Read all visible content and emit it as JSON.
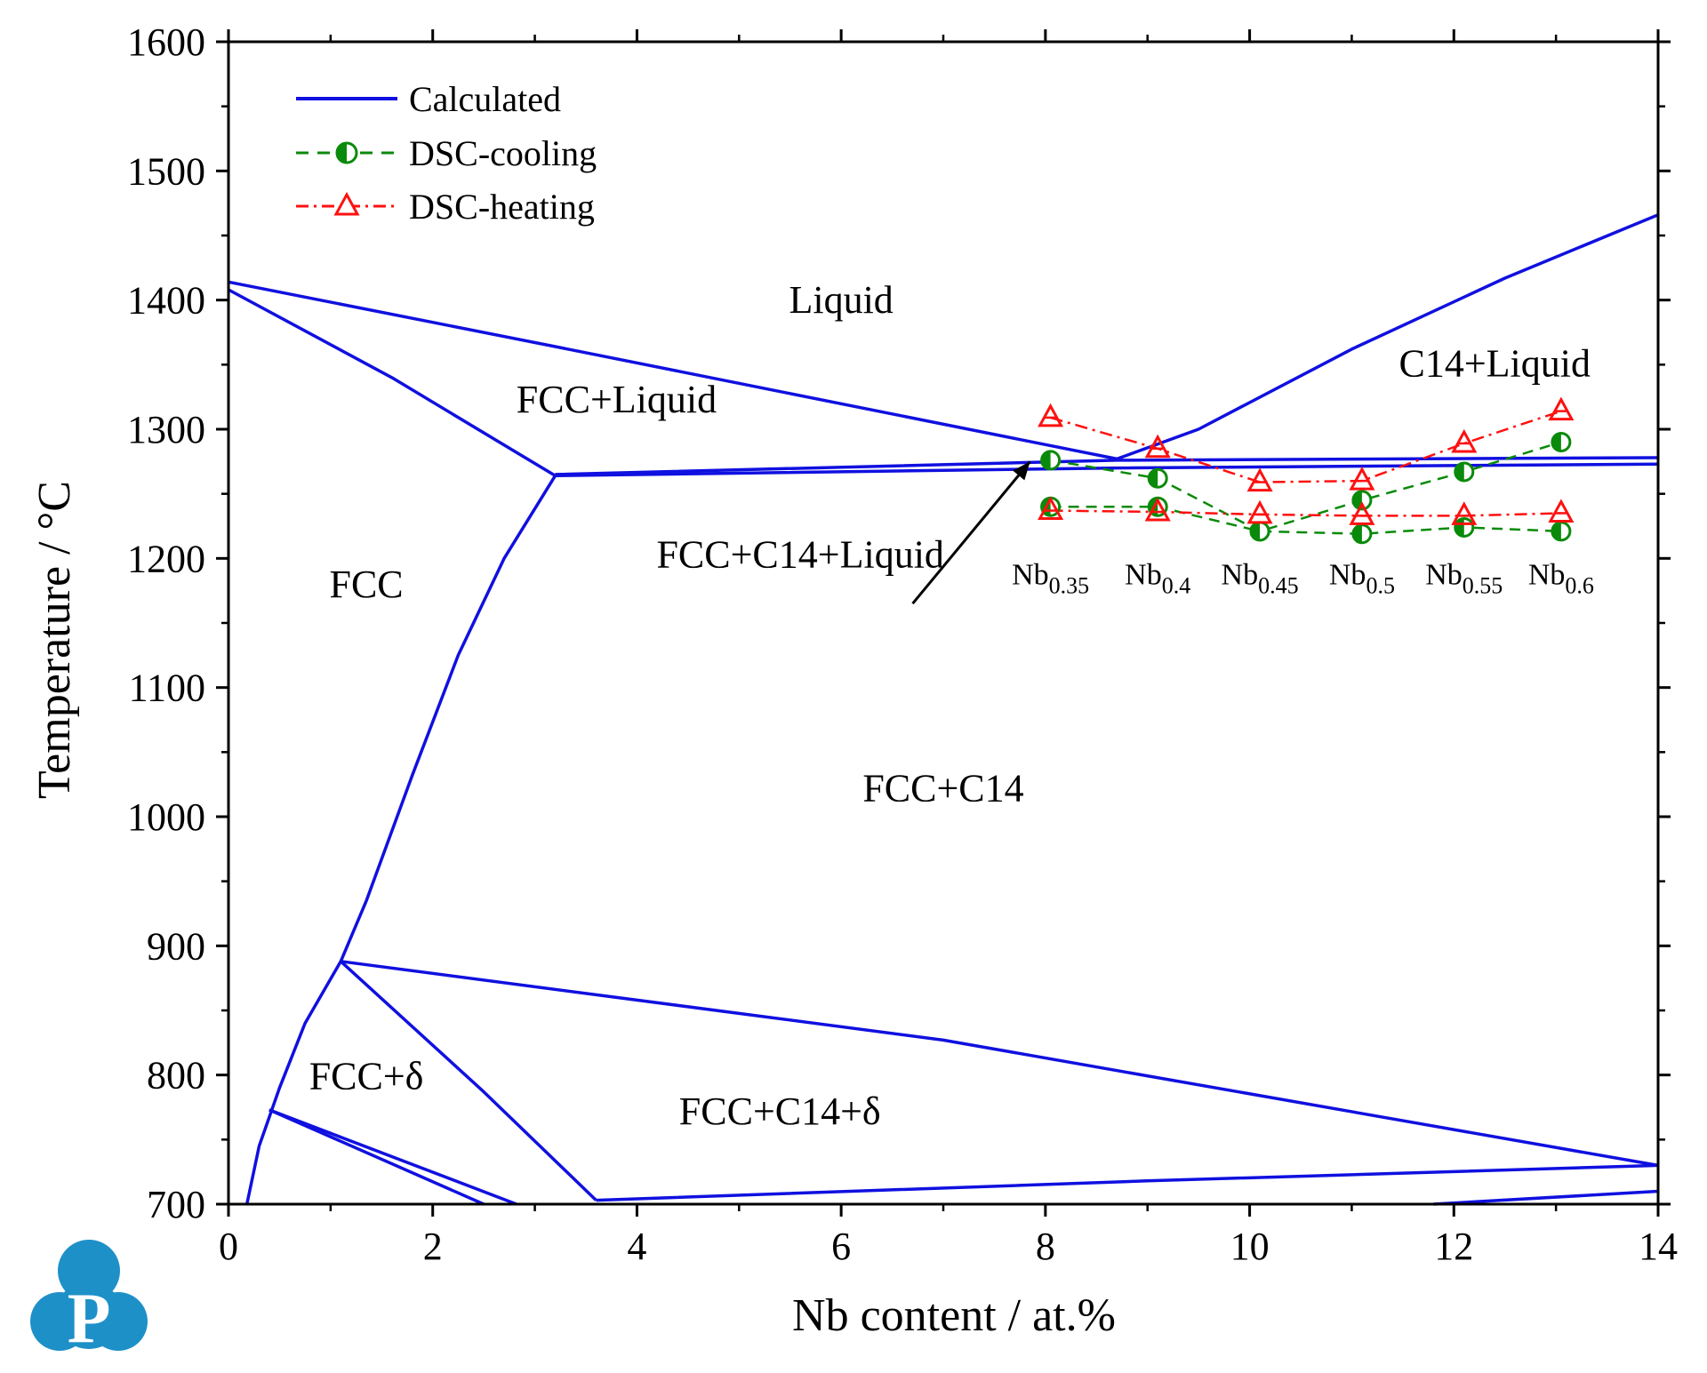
{
  "chart_data": {
    "type": "line",
    "xlabel": "Nb content / at.%",
    "ylabel": "Temperature / °C",
    "xlim": [
      0,
      14
    ],
    "ylim": [
      700,
      1600
    ],
    "x_ticks": [
      0,
      2,
      4,
      6,
      8,
      10,
      12,
      14
    ],
    "y_ticks": [
      700,
      800,
      900,
      1000,
      1100,
      1200,
      1300,
      1400,
      1500,
      1600
    ],
    "x_tick_labels": [
      "0",
      "2",
      "4",
      "6",
      "8",
      "10",
      "12",
      "14"
    ],
    "y_tick_labels": [
      "700",
      "800",
      "900",
      "1000",
      "1100",
      "1200",
      "1300",
      "1400",
      "1500",
      "1600"
    ],
    "legend_position": "top-left",
    "legend": [
      {
        "label": "Calculated",
        "color": "#0000e0",
        "style": "solid"
      },
      {
        "label": "DSC-cooling",
        "color": "#008000",
        "style": "dashed",
        "marker": "half-filled-circle"
      },
      {
        "label": "DSC-heating",
        "color": "#ff0000",
        "style": "dash-dot",
        "marker": "open-triangle"
      }
    ],
    "calculated_lines": [
      {
        "name": "liquidus-fcc",
        "points": [
          [
            0,
            1414
          ],
          [
            3.2,
            1364
          ],
          [
            8.7,
            1277
          ]
        ]
      },
      {
        "name": "solidus-fcc",
        "points": [
          [
            0,
            1408
          ],
          [
            1.6,
            1340
          ],
          [
            3.2,
            1264
          ]
        ]
      },
      {
        "name": "liquidus-c14",
        "points": [
          [
            8.7,
            1277
          ],
          [
            9.5,
            1300
          ],
          [
            11,
            1362
          ],
          [
            12.5,
            1417
          ],
          [
            14,
            1466
          ]
        ]
      },
      {
        "name": "eutectic-upper",
        "points": [
          [
            3.2,
            1265
          ],
          [
            8.7,
            1276
          ],
          [
            14,
            1278
          ]
        ]
      },
      {
        "name": "eutectic-lower",
        "points": [
          [
            3.2,
            1264
          ],
          [
            8.7,
            1270
          ],
          [
            14,
            1273
          ]
        ]
      },
      {
        "name": "fcc-solvus",
        "points": [
          [
            1.1,
            888
          ],
          [
            1.35,
            935
          ],
          [
            1.8,
            1032
          ],
          [
            2.25,
            1125
          ],
          [
            2.7,
            1200
          ],
          [
            3.2,
            1264
          ]
        ]
      },
      {
        "name": "fcc-delta-solvus",
        "points": [
          [
            0.18,
            700
          ],
          [
            0.3,
            745
          ],
          [
            0.5,
            790
          ],
          [
            0.75,
            840
          ],
          [
            1.1,
            888
          ]
        ]
      },
      {
        "name": "delta-upper",
        "points": [
          [
            1.1,
            888
          ],
          [
            2.5,
            787
          ],
          [
            3.6,
            703
          ]
        ]
      },
      {
        "name": "delta-lower",
        "points": [
          [
            3.6,
            703
          ],
          [
            9,
            718
          ],
          [
            14,
            730
          ]
        ]
      },
      {
        "name": "c14-delta-boundary",
        "points": [
          [
            1.1,
            888
          ],
          [
            7,
            827
          ],
          [
            14,
            730
          ]
        ]
      },
      {
        "name": "delta-fan-1",
        "points": [
          [
            0.4,
            773
          ],
          [
            2.82,
            700
          ]
        ]
      },
      {
        "name": "delta-fan-2",
        "points": [
          [
            0.4,
            773
          ],
          [
            2.5,
            700
          ]
        ]
      },
      {
        "name": "lower-right-boundary",
        "points": [
          [
            11.8,
            700
          ],
          [
            14,
            710
          ]
        ]
      }
    ],
    "dsc_cooling": {
      "x": [
        8.05,
        9.1,
        10.1,
        11.1,
        12.1,
        13.05
      ],
      "upper": [
        1276,
        1262,
        1221,
        1245,
        1267,
        1290
      ],
      "lower": [
        1240,
        1240,
        1221,
        1219,
        1224,
        1221
      ]
    },
    "dsc_heating": {
      "x": [
        8.05,
        9.1,
        10.1,
        11.1,
        12.1,
        13.05
      ],
      "upper": [
        1309,
        1285,
        1259,
        1260,
        1289,
        1314
      ],
      "lower": [
        1237,
        1236,
        1234,
        1233,
        1233,
        1235
      ]
    },
    "region_labels": [
      {
        "text": "Liquid",
        "x": 6.0,
        "y": 1390
      },
      {
        "text": "C14+Liquid",
        "x": 12.4,
        "y": 1341
      },
      {
        "text": "FCC+Liquid",
        "x": 3.8,
        "y": 1313
      },
      {
        "text": "FCC+C14+Liquid",
        "x": 5.6,
        "y": 1193
      },
      {
        "text": "FCC",
        "x": 1.35,
        "y": 1170
      },
      {
        "text": "FCC+C14",
        "x": 7.0,
        "y": 1012
      },
      {
        "text": "FCC+δ",
        "x": 1.35,
        "y": 789
      },
      {
        "text": "FCC+C14+δ",
        "x": 5.4,
        "y": 762
      }
    ],
    "annotation_arrow": {
      "from": [
        6.7,
        1165
      ],
      "to": [
        7.85,
        1275
      ]
    },
    "sample_labels": [
      {
        "base": "Nb",
        "sub": "0.35",
        "x": 8.05
      },
      {
        "base": "Nb",
        "sub": "0.4",
        "x": 9.1
      },
      {
        "base": "Nb",
        "sub": "0.45",
        "x": 10.1
      },
      {
        "base": "Nb",
        "sub": "0.5",
        "x": 11.1
      },
      {
        "base": "Nb",
        "sub": "0.55",
        "x": 12.1
      },
      {
        "base": "Nb",
        "sub": "0.6",
        "x": 13.05
      }
    ],
    "sample_labels_y": 1180
  },
  "colors": {
    "calculated": "#1010e0",
    "cooling": "#0a8a0a",
    "heating": "#ff1010",
    "logo": "#1e90c8"
  },
  "logo_text": "P"
}
